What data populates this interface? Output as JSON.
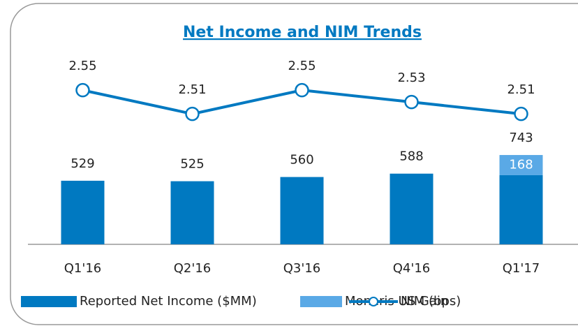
{
  "chart_data": {
    "type": "bar-line",
    "title": "Net Income and NIM Trends",
    "categories": [
      "Q1'16",
      "Q2'16",
      "Q3'16",
      "Q4'16",
      "Q1'17"
    ],
    "series": [
      {
        "name": "Reported Net Income ($MM)",
        "type": "bar",
        "color": "#0079c1",
        "values": [
          529,
          525,
          560,
          588,
          575
        ]
      },
      {
        "name": "Moneris US Gain",
        "type": "bar",
        "color": "#5aa9e6",
        "values": [
          null,
          null,
          null,
          null,
          168
        ],
        "show_labels": true
      },
      {
        "name": "NIM (bps)",
        "type": "line",
        "axis": "y2",
        "color": "#0079c1",
        "values": [
          2.55,
          2.51,
          2.55,
          2.53,
          2.51
        ],
        "show_labels": true
      }
    ],
    "totals": [
      529,
      525,
      560,
      588,
      743
    ],
    "ylim": [
      0,
      1800
    ],
    "y2lim": [
      2.29,
      2.655
    ],
    "grid": false
  }
}
